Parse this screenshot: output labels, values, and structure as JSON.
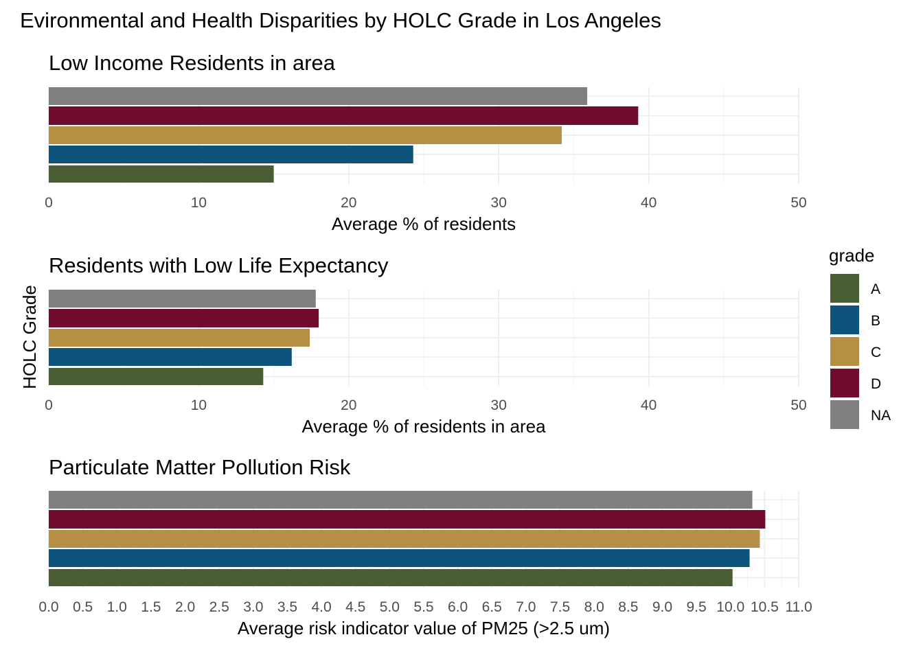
{
  "main_title": "Evironmental and Health Disparities by HOLC Grade in Los Angeles",
  "shared_ylabel": "HOLC Grade",
  "legend": {
    "title": "grade",
    "items": [
      {
        "label": "A",
        "color": "#4A5E34"
      },
      {
        "label": "B",
        "color": "#0E537B"
      },
      {
        "label": "C",
        "color": "#B58F43"
      },
      {
        "label": "D",
        "color": "#710C2F"
      },
      {
        "label": "NA",
        "color": "#808080"
      }
    ]
  },
  "chart_data": [
    {
      "type": "bar",
      "orientation": "horizontal",
      "title": "Low Income Residents in area",
      "xlabel": "Average % of residents",
      "ylabel": "HOLC Grade",
      "categories": [
        "A",
        "B",
        "C",
        "D",
        "NA"
      ],
      "values": [
        15.0,
        24.3,
        34.2,
        39.3,
        35.9
      ],
      "xlim": [
        0,
        50
      ],
      "xticks": [
        "0",
        "10",
        "20",
        "30",
        "40",
        "50"
      ],
      "grid": true
    },
    {
      "type": "bar",
      "orientation": "horizontal",
      "title": "Residents with Low Life Expectancy",
      "xlabel": "Average % of residents in area",
      "ylabel": "HOLC Grade",
      "categories": [
        "A",
        "B",
        "C",
        "D",
        "NA"
      ],
      "values": [
        14.3,
        16.2,
        17.4,
        18.0,
        17.8
      ],
      "xlim": [
        0,
        50
      ],
      "xticks": [
        "0",
        "10",
        "20",
        "30",
        "40",
        "50"
      ],
      "grid": true
    },
    {
      "type": "bar",
      "orientation": "horizontal",
      "title": "Particulate Matter Pollution Risk",
      "xlabel": "Average risk indicator value of PM25 (>2.5 um)",
      "ylabel": "HOLC Grade",
      "categories": [
        "A",
        "B",
        "C",
        "D",
        "NA"
      ],
      "values": [
        10.03,
        10.28,
        10.43,
        10.51,
        10.32
      ],
      "xlim": [
        0,
        11
      ],
      "xticks": [
        "0.0",
        "0.5",
        "1.0",
        "1.5",
        "2.0",
        "2.5",
        "3.0",
        "3.5",
        "4.0",
        "4.5",
        "5.0",
        "5.5",
        "6.0",
        "6.5",
        "7.0",
        "7.5",
        "8.0",
        "8.5",
        "9.0",
        "9.5",
        "10.0",
        "10.5",
        "11.0"
      ],
      "grid": true
    }
  ]
}
